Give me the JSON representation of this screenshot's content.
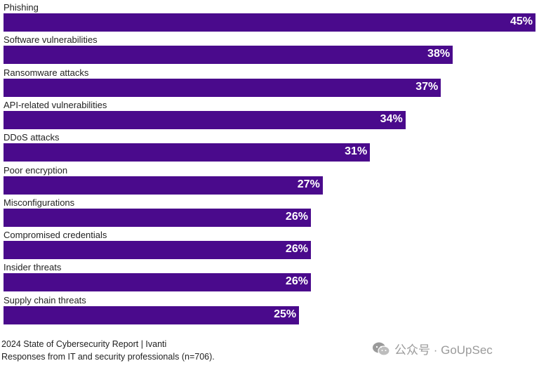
{
  "chart_data": {
    "type": "bar",
    "orientation": "horizontal",
    "categories": [
      "Phishing",
      "Software vulnerabilities",
      "Ransomware attacks",
      "API-related vulnerabilities",
      "DDoS attacks",
      "Poor encryption",
      "Misconfigurations",
      "Compromised credentials",
      "Insider threats",
      "Supply chain threats"
    ],
    "values": [
      45,
      38,
      37,
      34,
      31,
      27,
      26,
      26,
      26,
      25
    ],
    "value_labels": [
      "45%",
      "38%",
      "37%",
      "34%",
      "31%",
      "27%",
      "26%",
      "26%",
      "26%",
      "25%"
    ],
    "unit": "%",
    "xlim": [
      0,
      45
    ],
    "bar_color": "#4a0a8c",
    "value_label_color": "#ffffff",
    "title": "",
    "xlabel": "",
    "ylabel": ""
  },
  "source": {
    "line1": "2024 State of Cybersecurity Report | Ivanti",
    "line2": "Responses from IT and security professionals (n=706)."
  },
  "watermark": {
    "text": "公众号 · GoUpSec",
    "icon": "wechat-icon"
  }
}
